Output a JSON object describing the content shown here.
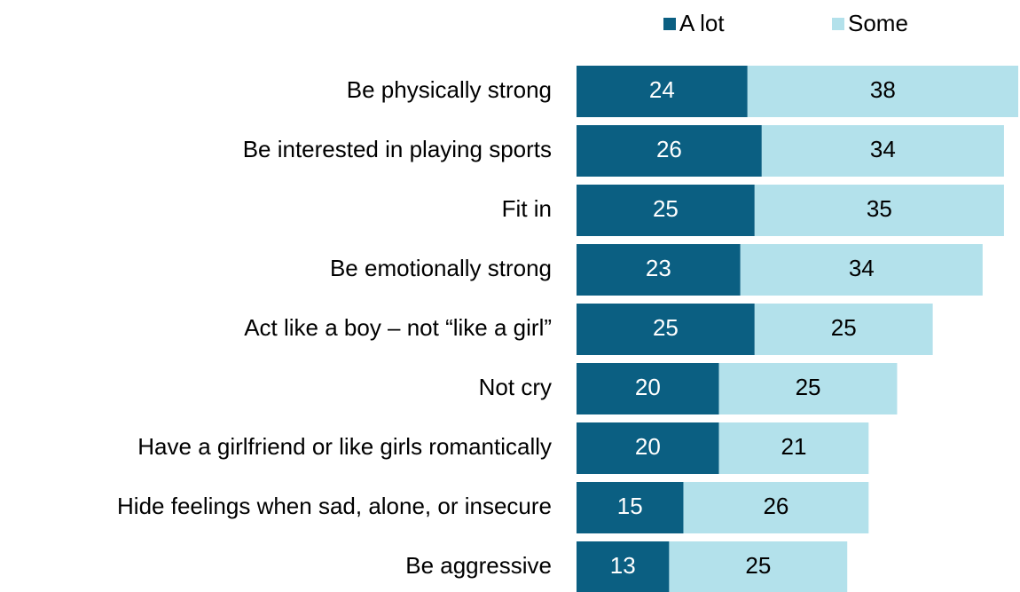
{
  "chart_data": {
    "type": "stacked_barh",
    "categories": [
      "Be physically strong",
      "Be interested in playing sports",
      "Fit in",
      "Be emotionally strong",
      "Act like a boy – not “like a girl”",
      "Not cry",
      "Have a girlfriend or like girls romantically",
      "Hide feelings when sad, alone, or insecure",
      "Be aggressive"
    ],
    "series": [
      {
        "name": "A lot",
        "color": "#0b5f82",
        "values": [
          24,
          26,
          25,
          23,
          25,
          20,
          20,
          15,
          13
        ]
      },
      {
        "name": "Some",
        "color": "#b3e1eb",
        "values": [
          38,
          34,
          35,
          34,
          25,
          25,
          21,
          26,
          25
        ]
      }
    ],
    "legend": "top"
  }
}
